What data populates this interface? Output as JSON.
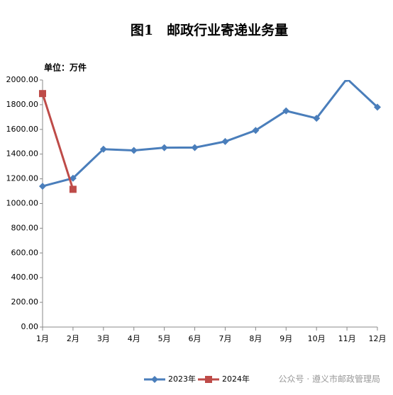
{
  "chart_data": {
    "type": "line",
    "title": "图1　邮政行业寄递业务量",
    "subtitle": "单位：万件",
    "categories": [
      "1月",
      "2月",
      "3月",
      "4月",
      "5月",
      "6月",
      "7月",
      "8月",
      "9月",
      "10月",
      "11月",
      "12月"
    ],
    "series": [
      {
        "name": "2023年",
        "color": "#4a7ebb",
        "marker": "diamond",
        "values": [
          1140,
          1205,
          1440,
          1430,
          1452,
          1453,
          1502,
          1592,
          1750,
          1690,
          2010,
          1780
        ]
      },
      {
        "name": "2024年",
        "color": "#be4b48",
        "marker": "square",
        "values": [
          1890,
          1115,
          null,
          null,
          null,
          null,
          null,
          null,
          null,
          null,
          null,
          null
        ]
      }
    ],
    "ylim": [
      0,
      2000
    ],
    "yticks": [
      {
        "value": 0,
        "label": "0.00"
      },
      {
        "value": 200,
        "label": "200.00"
      },
      {
        "value": 400,
        "label": "400.00"
      },
      {
        "value": 600,
        "label": "600.00"
      },
      {
        "value": 800,
        "label": "800.00"
      },
      {
        "value": 1000,
        "label": "1000.00"
      },
      {
        "value": 1200,
        "label": "1200.00"
      },
      {
        "value": 1400,
        "label": "1400.00"
      },
      {
        "value": 1600,
        "label": "1600.00"
      },
      {
        "value": 1800,
        "label": "1800.00"
      },
      {
        "value": 2000,
        "label": "2000.00"
      }
    ],
    "grid": false,
    "legend": "bottom",
    "annotation": "公众号 · 遵义市邮政管理局"
  }
}
